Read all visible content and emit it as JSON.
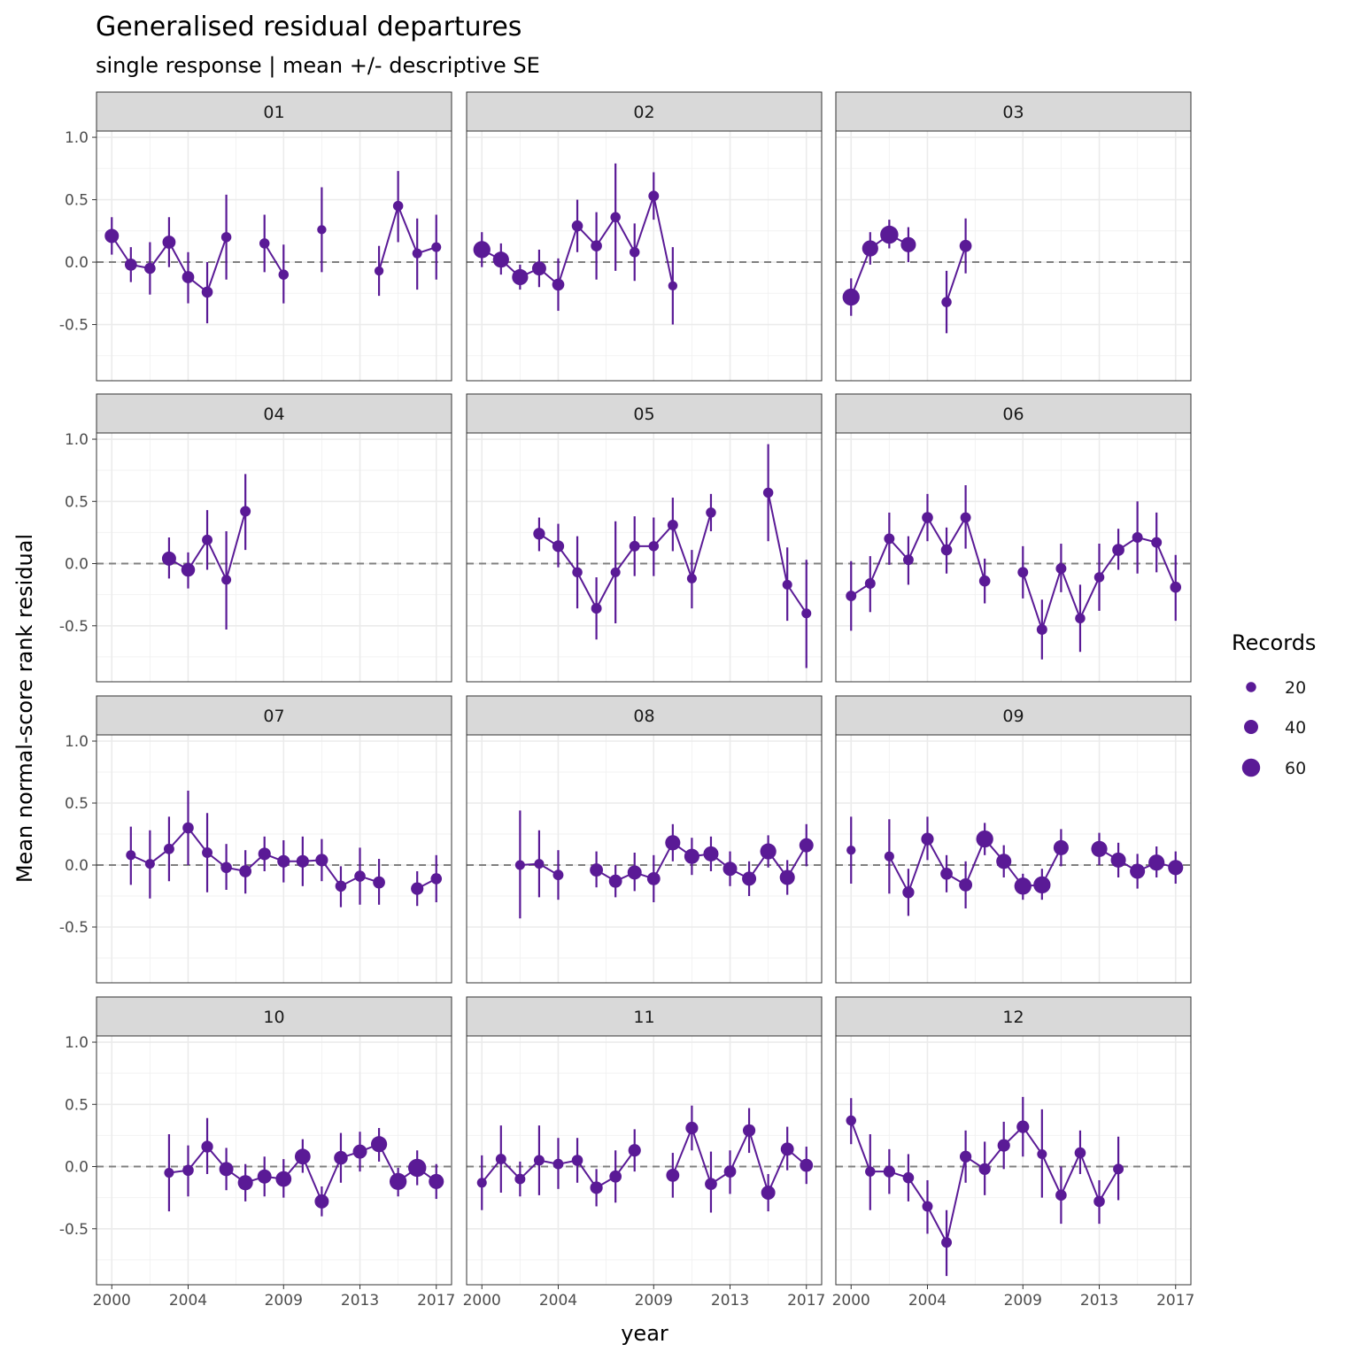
{
  "chart_data": {
    "type": "scatter",
    "title": "Generalised residual departures",
    "subtitle": "single response | mean +/- descriptive SE",
    "xlabel": "year",
    "ylabel": "Mean normal-score rank residual",
    "xlim": [
      1999.2,
      2017.8
    ],
    "ylim": [
      -0.95,
      1.05
    ],
    "x_ticks": [
      2000,
      2004,
      2009,
      2013,
      2017
    ],
    "x_tick_labels": [
      "2000",
      "2004",
      "2009",
      "2013",
      "2017"
    ],
    "y_ticks": [
      -0.5,
      0.0,
      0.5,
      1.0
    ],
    "y_tick_labels": [
      "-0.5",
      "0.0",
      "0.5",
      "1.0"
    ],
    "reference_line": 0,
    "grid": true,
    "color": "#5a1a96",
    "legend": {
      "title": "Records",
      "position": "right",
      "entries": [
        {
          "label": "20",
          "value": 20
        },
        {
          "label": "40",
          "value": 40
        },
        {
          "label": "60",
          "value": 60
        }
      ]
    },
    "panels": [
      {
        "label": "01",
        "points": [
          [
            2000,
            0.21,
            0.36,
            0.06,
            40
          ],
          [
            2001,
            -0.02,
            0.12,
            -0.16,
            30
          ],
          [
            2002,
            -0.05,
            0.16,
            -0.26,
            25
          ],
          [
            2003,
            0.16,
            0.36,
            -0.04,
            35
          ],
          [
            2004,
            -0.12,
            0.08,
            -0.33,
            30
          ],
          [
            2005,
            -0.24,
            0.0,
            -0.49,
            25
          ],
          [
            2006,
            0.2,
            0.54,
            -0.14,
            20
          ],
          [
            2008,
            0.15,
            0.38,
            -0.08,
            20
          ],
          [
            2009,
            -0.1,
            0.14,
            -0.33,
            20
          ],
          [
            2011,
            0.26,
            0.6,
            -0.08,
            15
          ],
          [
            2014,
            -0.07,
            0.13,
            -0.27,
            15
          ],
          [
            2015,
            0.45,
            0.73,
            0.16,
            20
          ],
          [
            2016,
            0.07,
            0.35,
            -0.22,
            18
          ],
          [
            2017,
            0.12,
            0.38,
            -0.14,
            18
          ]
        ]
      },
      {
        "label": "02",
        "points": [
          [
            2000,
            0.1,
            0.24,
            -0.04,
            55
          ],
          [
            2001,
            0.02,
            0.15,
            -0.1,
            50
          ],
          [
            2002,
            -0.12,
            -0.02,
            -0.22,
            50
          ],
          [
            2003,
            -0.05,
            0.1,
            -0.2,
            40
          ],
          [
            2004,
            -0.18,
            0.03,
            -0.39,
            30
          ],
          [
            2005,
            0.29,
            0.5,
            0.08,
            25
          ],
          [
            2006,
            0.13,
            0.4,
            -0.14,
            25
          ],
          [
            2007,
            0.36,
            0.79,
            -0.07,
            20
          ],
          [
            2008,
            0.08,
            0.31,
            -0.15,
            20
          ],
          [
            2009,
            0.53,
            0.72,
            0.34,
            22
          ],
          [
            2010,
            -0.19,
            0.12,
            -0.5,
            15
          ]
        ]
      },
      {
        "label": "03",
        "points": [
          [
            2000,
            -0.28,
            -0.13,
            -0.43,
            55
          ],
          [
            2001,
            0.11,
            0.24,
            -0.02,
            50
          ],
          [
            2002,
            0.22,
            0.34,
            0.11,
            60
          ],
          [
            2003,
            0.14,
            0.28,
            0.0,
            45
          ],
          [
            2005,
            -0.32,
            -0.07,
            -0.57,
            20
          ],
          [
            2006,
            0.13,
            0.35,
            -0.09,
            30
          ]
        ]
      },
      {
        "label": "04",
        "points": [
          [
            2003,
            0.04,
            0.21,
            -0.12,
            40
          ],
          [
            2004,
            -0.05,
            0.09,
            -0.2,
            38
          ],
          [
            2005,
            0.19,
            0.43,
            -0.05,
            22
          ],
          [
            2006,
            -0.13,
            0.26,
            -0.53,
            18
          ],
          [
            2007,
            0.42,
            0.72,
            0.11,
            22
          ]
        ]
      },
      {
        "label": "05",
        "points": [
          [
            2003,
            0.24,
            0.37,
            0.1,
            28
          ],
          [
            2004,
            0.14,
            0.32,
            -0.03,
            28
          ],
          [
            2005,
            -0.07,
            0.22,
            -0.36,
            20
          ],
          [
            2006,
            -0.36,
            -0.11,
            -0.61,
            22
          ],
          [
            2007,
            -0.07,
            0.34,
            -0.48,
            18
          ],
          [
            2008,
            0.14,
            0.38,
            -0.1,
            22
          ],
          [
            2009,
            0.14,
            0.37,
            -0.1,
            20
          ],
          [
            2010,
            0.31,
            0.53,
            0.1,
            22
          ],
          [
            2011,
            -0.12,
            0.11,
            -0.36,
            18
          ],
          [
            2012,
            0.41,
            0.56,
            0.26,
            20
          ],
          [
            2015,
            0.57,
            0.96,
            0.18,
            20
          ],
          [
            2016,
            -0.17,
            0.13,
            -0.46,
            18
          ],
          [
            2017,
            -0.4,
            0.03,
            -0.84,
            18
          ]
        ]
      },
      {
        "label": "06",
        "points": [
          [
            2000,
            -0.26,
            0.02,
            -0.54,
            22
          ],
          [
            2001,
            -0.16,
            0.06,
            -0.39,
            22
          ],
          [
            2002,
            0.2,
            0.41,
            -0.01,
            22
          ],
          [
            2003,
            0.03,
            0.22,
            -0.17,
            22
          ],
          [
            2004,
            0.37,
            0.56,
            0.18,
            25
          ],
          [
            2005,
            0.11,
            0.29,
            -0.08,
            25
          ],
          [
            2006,
            0.37,
            0.63,
            0.12,
            22
          ],
          [
            2007,
            -0.14,
            0.04,
            -0.32,
            25
          ],
          [
            2009,
            -0.07,
            0.14,
            -0.28,
            22
          ],
          [
            2010,
            -0.53,
            -0.29,
            -0.77,
            22
          ],
          [
            2011,
            -0.04,
            0.16,
            -0.23,
            22
          ],
          [
            2012,
            -0.44,
            -0.17,
            -0.71,
            20
          ],
          [
            2013,
            -0.11,
            0.16,
            -0.38,
            20
          ],
          [
            2014,
            0.11,
            0.28,
            -0.05,
            30
          ],
          [
            2015,
            0.21,
            0.5,
            -0.08,
            22
          ],
          [
            2016,
            0.17,
            0.41,
            -0.07,
            22
          ],
          [
            2017,
            -0.19,
            0.07,
            -0.46,
            25
          ]
        ]
      },
      {
        "label": "07",
        "points": [
          [
            2001,
            0.08,
            0.31,
            -0.16,
            18
          ],
          [
            2002,
            0.01,
            0.28,
            -0.27,
            18
          ],
          [
            2003,
            0.13,
            0.39,
            -0.13,
            22
          ],
          [
            2004,
            0.3,
            0.6,
            0.0,
            25
          ],
          [
            2005,
            0.1,
            0.42,
            -0.22,
            22
          ],
          [
            2006,
            -0.02,
            0.17,
            -0.2,
            25
          ],
          [
            2007,
            -0.05,
            0.12,
            -0.23,
            30
          ],
          [
            2008,
            0.09,
            0.23,
            -0.05,
            32
          ],
          [
            2009,
            0.03,
            0.2,
            -0.14,
            32
          ],
          [
            2010,
            0.03,
            0.23,
            -0.17,
            32
          ],
          [
            2011,
            0.04,
            0.21,
            -0.13,
            32
          ],
          [
            2012,
            -0.17,
            -0.01,
            -0.34,
            25
          ],
          [
            2013,
            -0.09,
            0.14,
            -0.32,
            25
          ],
          [
            2014,
            -0.14,
            0.05,
            -0.32,
            30
          ],
          [
            2016,
            -0.19,
            -0.05,
            -0.33,
            32
          ],
          [
            2017,
            -0.11,
            0.08,
            -0.3,
            25
          ]
        ]
      },
      {
        "label": "08",
        "points": [
          [
            2002,
            0.0,
            0.44,
            -0.43,
            18
          ],
          [
            2003,
            0.01,
            0.28,
            -0.26,
            18
          ],
          [
            2004,
            -0.08,
            0.12,
            -0.28,
            22
          ],
          [
            2006,
            -0.04,
            0.11,
            -0.18,
            35
          ],
          [
            2007,
            -0.13,
            0.0,
            -0.26,
            35
          ],
          [
            2008,
            -0.06,
            0.1,
            -0.21,
            40
          ],
          [
            2009,
            -0.11,
            0.08,
            -0.3,
            35
          ],
          [
            2010,
            0.18,
            0.33,
            0.03,
            45
          ],
          [
            2011,
            0.07,
            0.22,
            -0.08,
            45
          ],
          [
            2012,
            0.09,
            0.23,
            -0.05,
            45
          ],
          [
            2013,
            -0.03,
            0.11,
            -0.17,
            40
          ],
          [
            2014,
            -0.11,
            0.03,
            -0.25,
            40
          ],
          [
            2015,
            0.11,
            0.24,
            -0.02,
            50
          ],
          [
            2016,
            -0.1,
            0.04,
            -0.24,
            45
          ],
          [
            2017,
            0.16,
            0.33,
            -0.01,
            40
          ]
        ]
      },
      {
        "label": "09",
        "points": [
          [
            2000,
            0.12,
            0.39,
            -0.15,
            15
          ],
          [
            2002,
            0.07,
            0.37,
            -0.23,
            18
          ],
          [
            2003,
            -0.22,
            -0.03,
            -0.41,
            28
          ],
          [
            2004,
            0.21,
            0.39,
            0.04,
            32
          ],
          [
            2005,
            -0.07,
            0.08,
            -0.22,
            30
          ],
          [
            2006,
            -0.16,
            0.03,
            -0.35,
            35
          ],
          [
            2007,
            0.21,
            0.34,
            0.08,
            55
          ],
          [
            2008,
            0.03,
            0.16,
            -0.1,
            45
          ],
          [
            2009,
            -0.17,
            -0.07,
            -0.28,
            55
          ],
          [
            2010,
            -0.16,
            -0.03,
            -0.28,
            55
          ],
          [
            2011,
            0.14,
            0.29,
            -0.01,
            45
          ],
          [
            2013,
            0.13,
            0.26,
            0.0,
            50
          ],
          [
            2014,
            0.04,
            0.18,
            -0.1,
            45
          ],
          [
            2015,
            -0.05,
            0.09,
            -0.19,
            45
          ],
          [
            2016,
            0.02,
            0.15,
            -0.1,
            50
          ],
          [
            2017,
            -0.02,
            0.11,
            -0.15,
            45
          ]
        ]
      },
      {
        "label": "10",
        "points": [
          [
            2003,
            -0.05,
            0.26,
            -0.36,
            18
          ],
          [
            2004,
            -0.03,
            0.17,
            -0.24,
            25
          ],
          [
            2005,
            0.16,
            0.39,
            -0.06,
            28
          ],
          [
            2006,
            -0.02,
            0.15,
            -0.19,
            40
          ],
          [
            2007,
            -0.13,
            0.02,
            -0.28,
            45
          ],
          [
            2008,
            -0.08,
            0.08,
            -0.24,
            40
          ],
          [
            2009,
            -0.1,
            0.06,
            -0.25,
            48
          ],
          [
            2010,
            0.08,
            0.22,
            -0.05,
            48
          ],
          [
            2011,
            -0.28,
            -0.16,
            -0.4,
            40
          ],
          [
            2012,
            0.07,
            0.27,
            -0.13,
            38
          ],
          [
            2013,
            0.12,
            0.28,
            -0.04,
            40
          ],
          [
            2014,
            0.18,
            0.31,
            0.04,
            50
          ],
          [
            2015,
            -0.12,
            -0.01,
            -0.24,
            55
          ],
          [
            2016,
            -0.01,
            0.13,
            -0.15,
            60
          ],
          [
            2017,
            -0.12,
            0.02,
            -0.26,
            45
          ]
        ]
      },
      {
        "label": "11",
        "points": [
          [
            2000,
            -0.13,
            0.09,
            -0.35,
            18
          ],
          [
            2001,
            0.06,
            0.33,
            -0.21,
            22
          ],
          [
            2002,
            -0.1,
            0.04,
            -0.24,
            22
          ],
          [
            2003,
            0.05,
            0.33,
            -0.23,
            22
          ],
          [
            2004,
            0.02,
            0.23,
            -0.18,
            22
          ],
          [
            2005,
            0.05,
            0.23,
            -0.13,
            25
          ],
          [
            2006,
            -0.17,
            -0.02,
            -0.32,
            32
          ],
          [
            2007,
            -0.08,
            0.13,
            -0.29,
            30
          ],
          [
            2008,
            0.13,
            0.3,
            -0.04,
            32
          ],
          [
            2010,
            -0.07,
            0.11,
            -0.25,
            35
          ],
          [
            2011,
            0.31,
            0.49,
            0.13,
            32
          ],
          [
            2012,
            -0.14,
            0.12,
            -0.37,
            30
          ],
          [
            2013,
            -0.04,
            0.13,
            -0.22,
            30
          ],
          [
            2014,
            0.29,
            0.47,
            0.11,
            32
          ],
          [
            2015,
            -0.21,
            -0.06,
            -0.36,
            40
          ],
          [
            2016,
            0.14,
            0.32,
            -0.03,
            35
          ],
          [
            2017,
            0.01,
            0.16,
            -0.14,
            35
          ]
        ]
      },
      {
        "label": "12",
        "points": [
          [
            2000,
            0.37,
            0.55,
            0.18,
            20
          ],
          [
            2001,
            -0.04,
            0.26,
            -0.35,
            20
          ],
          [
            2002,
            -0.04,
            0.14,
            -0.22,
            28
          ],
          [
            2003,
            -0.09,
            0.1,
            -0.28,
            25
          ],
          [
            2004,
            -0.32,
            -0.11,
            -0.54,
            22
          ],
          [
            2005,
            -0.61,
            -0.35,
            -0.88,
            22
          ],
          [
            2006,
            0.08,
            0.29,
            -0.13,
            28
          ],
          [
            2007,
            -0.02,
            0.2,
            -0.23,
            28
          ],
          [
            2008,
            0.17,
            0.36,
            -0.02,
            32
          ],
          [
            2009,
            0.32,
            0.56,
            0.08,
            32
          ],
          [
            2010,
            0.1,
            0.46,
            -0.25,
            18
          ],
          [
            2011,
            -0.23,
            0.0,
            -0.46,
            25
          ],
          [
            2012,
            0.11,
            0.29,
            -0.06,
            25
          ],
          [
            2013,
            -0.28,
            -0.11,
            -0.46,
            25
          ],
          [
            2014,
            -0.02,
            0.24,
            -0.27,
            22
          ]
        ]
      }
    ]
  }
}
